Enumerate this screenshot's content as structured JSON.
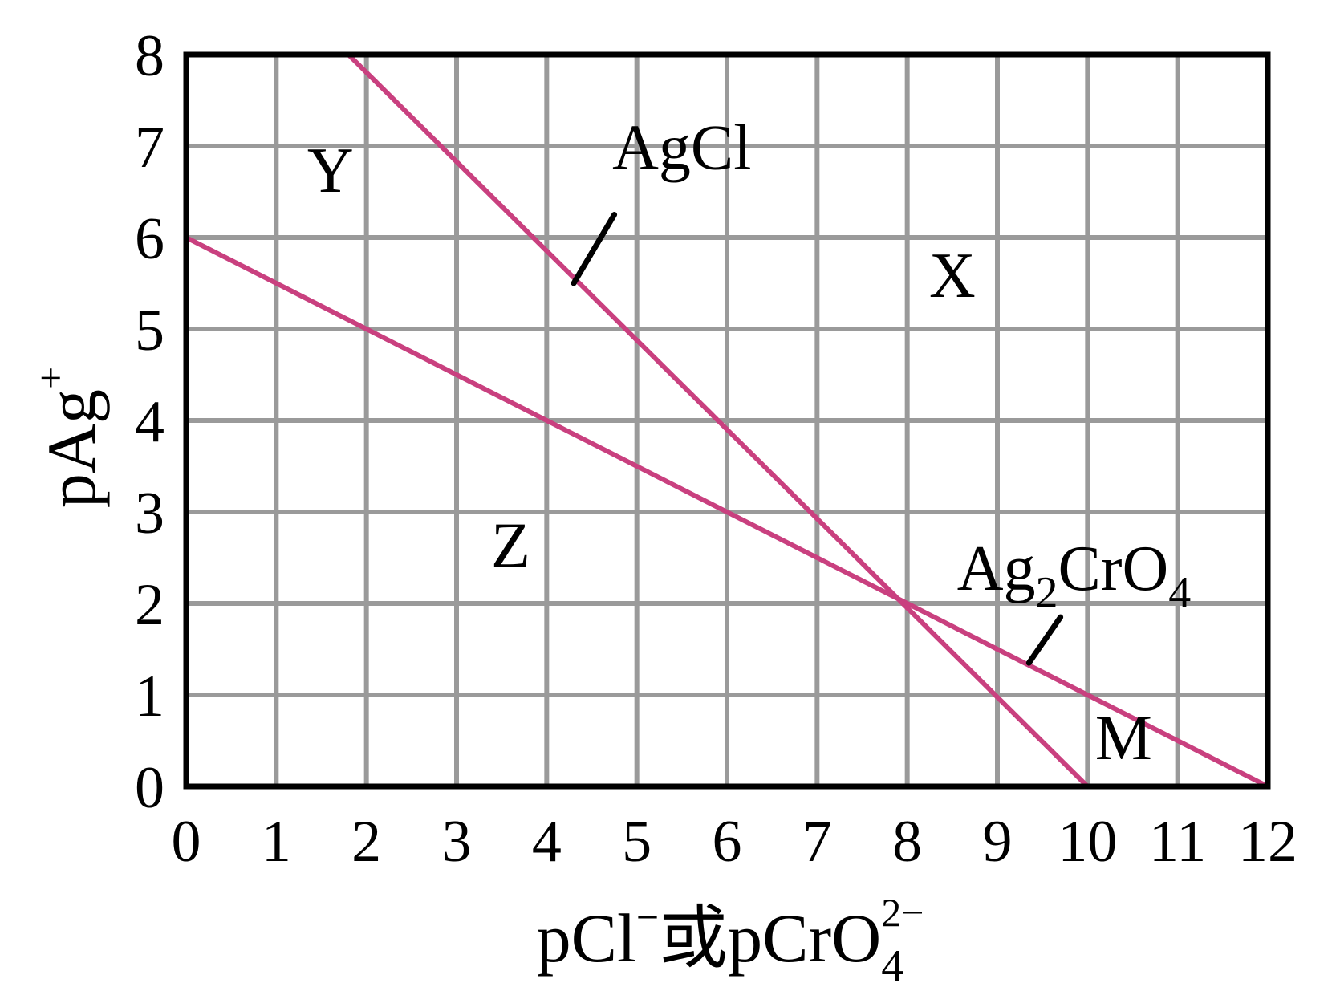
{
  "chart_data": {
    "type": "line",
    "x": {
      "label_main": "pCl",
      "label_sup1": "−",
      "label_mid": "或pCrO",
      "label_sub": "4",
      "label_sup2": "2−",
      "lim": [
        0,
        12
      ],
      "ticks": [
        0,
        1,
        2,
        3,
        4,
        5,
        6,
        7,
        8,
        9,
        10,
        11,
        12
      ]
    },
    "y": {
      "label_main": "pAg",
      "label_sup": "+",
      "lim": [
        0,
        8
      ],
      "ticks": [
        0,
        1,
        2,
        3,
        4,
        5,
        6,
        7,
        8
      ]
    },
    "grid": true,
    "series": [
      {
        "name_main": "AgCl",
        "color": "#c9407f",
        "points": [
          [
            1.8,
            8
          ],
          [
            10,
            0
          ]
        ],
        "leader": [
          [
            4.3,
            5.5
          ],
          [
            4.75,
            6.25
          ]
        ],
        "label_at": [
          5.5,
          6.75
        ]
      },
      {
        "name_main": "Ag",
        "name_sub1": "2",
        "name_mid": "CrO",
        "name_sub2": "4",
        "color": "#c9407f",
        "points": [
          [
            0,
            6
          ],
          [
            12,
            0
          ]
        ],
        "leader": [
          [
            9.35,
            1.35
          ],
          [
            9.7,
            1.85
          ]
        ],
        "label_at": [
          9.85,
          2.15
        ]
      }
    ],
    "region_labels": [
      {
        "text": "Y",
        "x": 1.6,
        "y": 6.5
      },
      {
        "text": "X",
        "x": 8.5,
        "y": 5.35
      },
      {
        "text": "Z",
        "x": 3.6,
        "y": 2.4
      },
      {
        "text": "M",
        "x": 10.4,
        "y": 0.3
      }
    ]
  }
}
